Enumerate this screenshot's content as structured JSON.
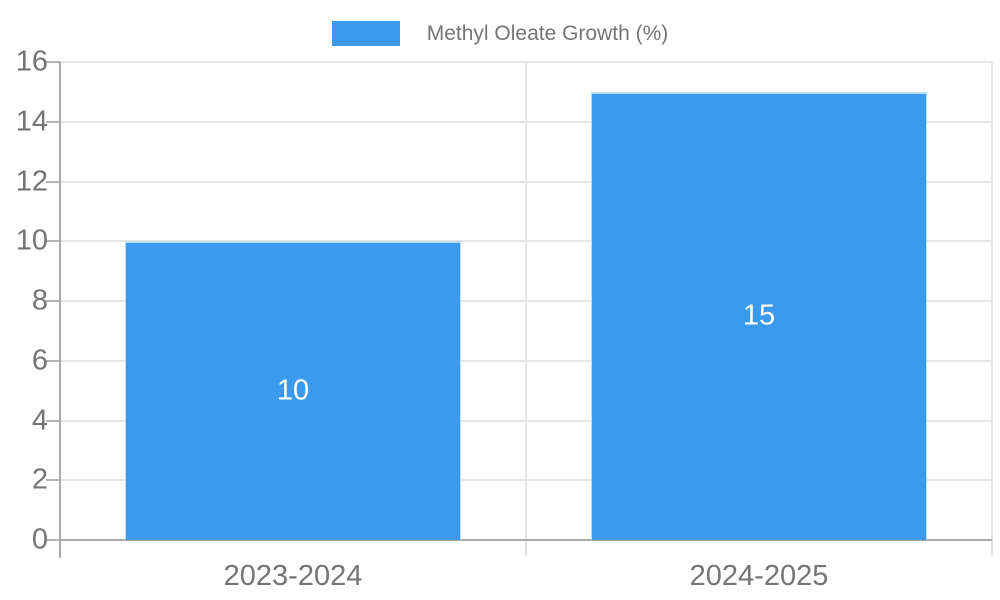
{
  "legend": {
    "label": "Methyl Oleate Growth (%)"
  },
  "colors": {
    "bar_fill": "#3b99ee",
    "bar_border": "#b9dcf8",
    "axis": "#a9a9a9",
    "grid": "#e6e6e6",
    "tick": "#b4b4b4",
    "boundary_tick": "#e0e0e0",
    "text": "#757575",
    "bar_label_text": "#ffffff",
    "background": "#ffffff"
  },
  "chart_data": {
    "type": "bar",
    "title": "",
    "xlabel": "",
    "ylabel": "",
    "categories": [
      "2023-2024",
      "2024-2025"
    ],
    "series": [
      {
        "name": "Methyl Oleate Growth (%)",
        "values": [
          10,
          15
        ]
      }
    ],
    "bar_labels": [
      "10",
      "15"
    ],
    "ylim": [
      0,
      16
    ],
    "yticks": [
      0,
      2,
      4,
      6,
      8,
      10,
      12,
      14,
      16
    ],
    "grid": true,
    "legend_position": "top"
  }
}
